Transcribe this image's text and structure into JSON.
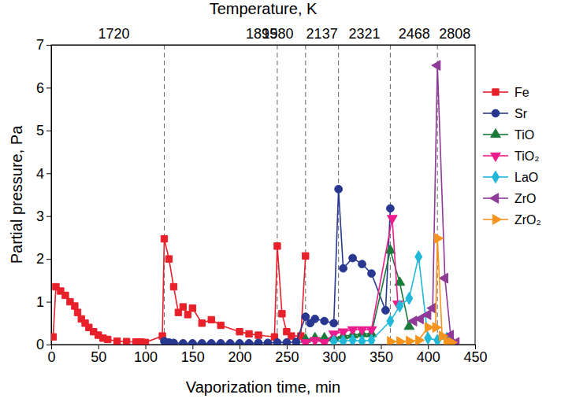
{
  "chart_data": {
    "type": "line",
    "x_label": "Vaporization time, min",
    "y_label": "Partial pressure, Pa",
    "x2_label": "Temperature, K",
    "xlim": [
      0,
      450
    ],
    "xticks": [
      0,
      50,
      100,
      150,
      200,
      250,
      300,
      350,
      400,
      450
    ],
    "ylim": [
      0,
      7
    ],
    "yticks": [
      0,
      1,
      2,
      3,
      4,
      5,
      6,
      7
    ],
    "x2ticks": [
      {
        "value": 66,
        "label": "1720"
      },
      {
        "value": 223,
        "label": "1895"
      },
      {
        "value": 240,
        "label": "1980"
      },
      {
        "value": 287,
        "label": "2137"
      },
      {
        "value": 332,
        "label": "2321"
      },
      {
        "value": 385,
        "label": "2468"
      },
      {
        "value": 428,
        "label": "2808"
      }
    ],
    "vlines": [
      120,
      240,
      270,
      305,
      360,
      410
    ],
    "legend": "right",
    "series": [
      {
        "name": "Fe",
        "color": "#e8202a",
        "marker": "square",
        "x": [
          2,
          5,
          10,
          15,
          20,
          25,
          28,
          32,
          36,
          40,
          45,
          50,
          55,
          60,
          70,
          80,
          90,
          95,
          100,
          118,
          120,
          125,
          130,
          135,
          140,
          145,
          150,
          160,
          170,
          180,
          200,
          210,
          220,
          237,
          240,
          245,
          250,
          255,
          265,
          270
        ],
        "values": [
          0.18,
          1.35,
          1.25,
          1.15,
          1.0,
          0.9,
          0.75,
          0.6,
          0.5,
          0.4,
          0.3,
          0.22,
          0.15,
          0.12,
          0.08,
          0.07,
          0.06,
          0.06,
          0.05,
          0.2,
          2.47,
          2.0,
          1.35,
          0.75,
          0.88,
          0.7,
          0.85,
          0.5,
          0.58,
          0.45,
          0.3,
          0.25,
          0.22,
          0.18,
          2.3,
          0.72,
          0.3,
          0.2,
          0.2,
          2.07
        ]
      },
      {
        "name": "Sr",
        "color": "#283891",
        "marker": "circle",
        "x": [
          120,
          125,
          130,
          140,
          150,
          160,
          170,
          180,
          190,
          200,
          210,
          220,
          230,
          240,
          250,
          260,
          270,
          275,
          280,
          290,
          300,
          305,
          310,
          320,
          330,
          340,
          355,
          360
        ],
        "values": [
          0.08,
          0.05,
          0.04,
          0.03,
          0.03,
          0.03,
          0.03,
          0.03,
          0.03,
          0.03,
          0.03,
          0.04,
          0.04,
          0.05,
          0.05,
          0.06,
          0.65,
          0.5,
          0.6,
          0.55,
          0.5,
          3.63,
          1.78,
          2.02,
          1.88,
          1.66,
          0.8,
          3.18
        ]
      },
      {
        "name": "TiO",
        "color": "#1a7a3a",
        "marker": "triangle-up",
        "x": [
          270,
          280,
          290,
          300,
          310,
          320,
          330,
          340,
          360,
          370,
          380
        ],
        "values": [
          0.12,
          0.15,
          0.15,
          0.15,
          0.2,
          0.22,
          0.25,
          0.25,
          2.2,
          1.45,
          0.42
        ]
      },
      {
        "name": "TiO₂",
        "color": "#ec1c8c",
        "marker": "triangle-down",
        "x": [
          270,
          280,
          290,
          300,
          310,
          320,
          330,
          340,
          362,
          368
        ],
        "values": [
          0.05,
          0.1,
          0.05,
          0.25,
          0.3,
          0.35,
          0.35,
          0.35,
          2.95,
          0.95
        ]
      },
      {
        "name": "LaO",
        "color": "#22b8d8",
        "marker": "diamond",
        "x": [
          300,
          310,
          320,
          330,
          340,
          360,
          370,
          380,
          390,
          400,
          410,
          420
        ],
        "values": [
          0.08,
          0.08,
          0.1,
          0.08,
          0.1,
          0.55,
          0.9,
          1.08,
          2.05,
          0.15,
          0.1,
          0.15
        ]
      },
      {
        "name": "ZrO",
        "color": "#8e3a96",
        "marker": "triangle-left",
        "x": [
          385,
          392,
          400,
          405,
          410,
          418,
          424,
          430
        ],
        "values": [
          0.55,
          0.6,
          0.7,
          0.85,
          6.52,
          1.55,
          0.22,
          0.05
        ]
      },
      {
        "name": "ZrO₂",
        "color": "#f7941d",
        "marker": "triangle-right",
        "x": [
          360,
          370,
          380,
          390,
          400,
          408,
          410,
          415,
          420,
          425
        ],
        "values": [
          0.07,
          0.07,
          0.08,
          0.1,
          0.4,
          0.4,
          2.48,
          0.2,
          0.08,
          0.05
        ]
      }
    ]
  }
}
